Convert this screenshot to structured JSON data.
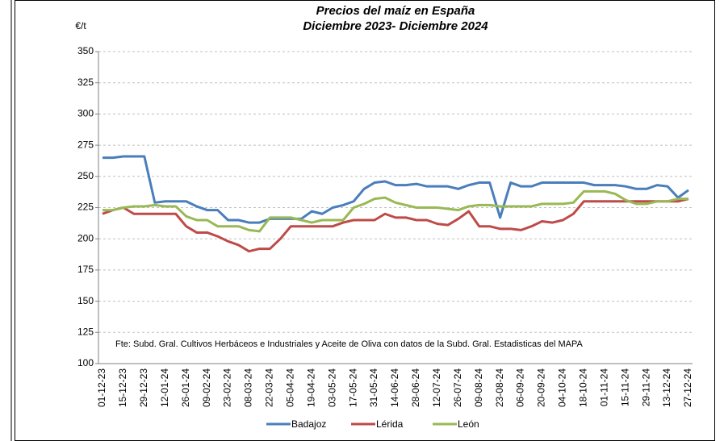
{
  "chart_data": {
    "type": "line",
    "title": "Precios del maíz en España",
    "subtitle": "Diciembre 2023- Diciembre 2024",
    "y_label": "€/t",
    "annotation": "Fte: Subd. Gral. Cultivos Herbáceos e Industriales y Aceite de Oliva con datos de la Subd. Gral. Estadisticas del MAPA",
    "categories": [
      "01-12-23",
      null,
      "15-12-23",
      null,
      "29-12-23",
      null,
      "12-01-24",
      null,
      "26-01-24",
      null,
      "09-02-24",
      null,
      "23-02-24",
      null,
      "08-03-24",
      null,
      "22-03-24",
      null,
      "05-04-24",
      null,
      "19-04-24",
      null,
      "03-05-24",
      null,
      "17-05-24",
      null,
      "31-05-24",
      null,
      "14-06-24",
      null,
      "28-06-24",
      null,
      "12-07-24",
      null,
      "26-07-24",
      null,
      "09-08-24",
      null,
      "23-08-24",
      null,
      "06-09-24",
      null,
      "20-09-24",
      null,
      "04-10-24",
      null,
      "18-10-24",
      null,
      "01-11-24",
      null,
      "15-11-24",
      null,
      "29-11-24",
      null,
      "13-12-24",
      null,
      "27-12-24"
    ],
    "series": [
      {
        "name": "Badajoz",
        "color": "#4a7ebb",
        "values": [
          265,
          265,
          266,
          266,
          266,
          229,
          230,
          230,
          230,
          226,
          223,
          223,
          215,
          215,
          213,
          213,
          216,
          216,
          216,
          216,
          222,
          220,
          225,
          227,
          230,
          240,
          245,
          246,
          243,
          243,
          244,
          242,
          242,
          242,
          240,
          243,
          245,
          245,
          217,
          245,
          242,
          242,
          245,
          245,
          245,
          245,
          245,
          243,
          243,
          243,
          242,
          240,
          240,
          243,
          242,
          233,
          239
        ]
      },
      {
        "name": "Lérida",
        "color": "#be4b48",
        "values": [
          220,
          223,
          225,
          220,
          220,
          220,
          220,
          220,
          210,
          205,
          205,
          202,
          198,
          195,
          190,
          192,
          192,
          200,
          210,
          210,
          210,
          210,
          210,
          213,
          215,
          215,
          215,
          220,
          217,
          217,
          215,
          215,
          212,
          211,
          216,
          222,
          210,
          210,
          208,
          208,
          207,
          210,
          214,
          213,
          215,
          220,
          230,
          230,
          230,
          230,
          230,
          230,
          230,
          230,
          230,
          230,
          232
        ]
      },
      {
        "name": "León",
        "color": "#98b954",
        "values": [
          223,
          223,
          225,
          226,
          226,
          227,
          226,
          226,
          218,
          215,
          215,
          210,
          210,
          210,
          207,
          206,
          217,
          217,
          217,
          215,
          213,
          215,
          215,
          215,
          225,
          228,
          232,
          233,
          229,
          227,
          225,
          225,
          225,
          224,
          223,
          226,
          227,
          227,
          226,
          226,
          226,
          226,
          228,
          228,
          228,
          229,
          238,
          238,
          238,
          236,
          231,
          228,
          228,
          230,
          230,
          232,
          232
        ]
      }
    ],
    "ylim": [
      100,
      350
    ],
    "yticks": [
      100,
      125,
      150,
      175,
      200,
      225,
      250,
      275,
      300,
      325,
      350
    ],
    "grid": true
  }
}
